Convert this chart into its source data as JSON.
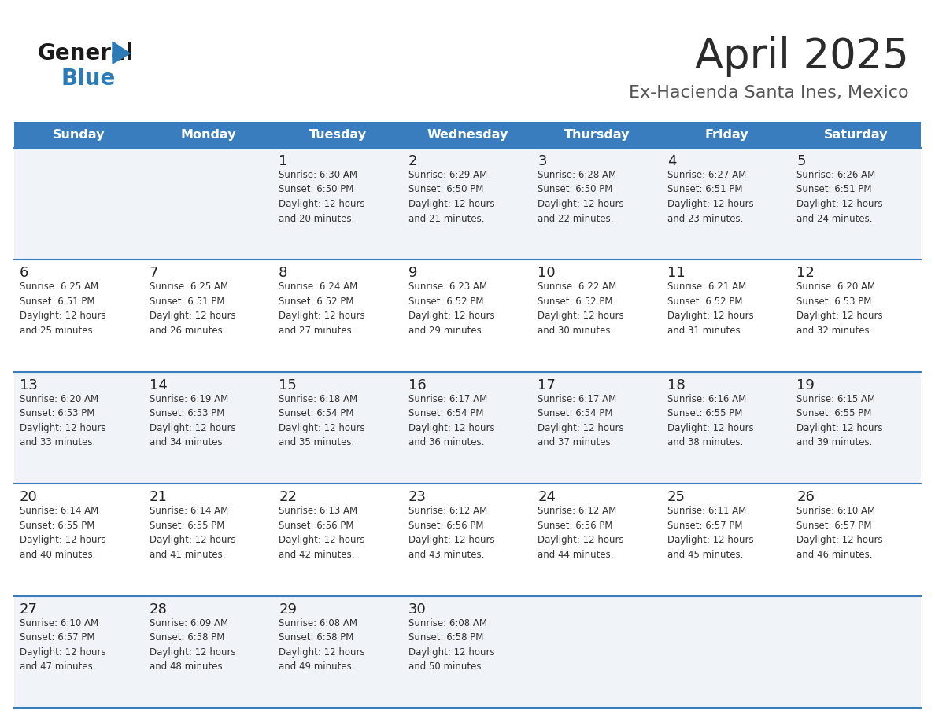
{
  "title": "April 2025",
  "subtitle": "Ex-Hacienda Santa Ines, Mexico",
  "header_bg_color": "#3A7DBF",
  "header_text_color": "#FFFFFF",
  "day_names": [
    "Sunday",
    "Monday",
    "Tuesday",
    "Wednesday",
    "Thursday",
    "Friday",
    "Saturday"
  ],
  "row_bg_odd": "#F0F4F8",
  "row_bg_even": "#FFFFFF",
  "cell_border_color": "#3A7DBF",
  "day_number_color": "#222222",
  "cell_text_color": "#333333",
  "title_color": "#2B2B2B",
  "subtitle_color": "#555555",
  "logo_general_color": "#1A1A1A",
  "logo_blue_color": "#2C7BB6",
  "weeks": [
    [
      {
        "day": null,
        "text": null
      },
      {
        "day": null,
        "text": null
      },
      {
        "day": 1,
        "text": "Sunrise: 6:30 AM\nSunset: 6:50 PM\nDaylight: 12 hours\nand 20 minutes."
      },
      {
        "day": 2,
        "text": "Sunrise: 6:29 AM\nSunset: 6:50 PM\nDaylight: 12 hours\nand 21 minutes."
      },
      {
        "day": 3,
        "text": "Sunrise: 6:28 AM\nSunset: 6:50 PM\nDaylight: 12 hours\nand 22 minutes."
      },
      {
        "day": 4,
        "text": "Sunrise: 6:27 AM\nSunset: 6:51 PM\nDaylight: 12 hours\nand 23 minutes."
      },
      {
        "day": 5,
        "text": "Sunrise: 6:26 AM\nSunset: 6:51 PM\nDaylight: 12 hours\nand 24 minutes."
      }
    ],
    [
      {
        "day": 6,
        "text": "Sunrise: 6:25 AM\nSunset: 6:51 PM\nDaylight: 12 hours\nand 25 minutes."
      },
      {
        "day": 7,
        "text": "Sunrise: 6:25 AM\nSunset: 6:51 PM\nDaylight: 12 hours\nand 26 minutes."
      },
      {
        "day": 8,
        "text": "Sunrise: 6:24 AM\nSunset: 6:52 PM\nDaylight: 12 hours\nand 27 minutes."
      },
      {
        "day": 9,
        "text": "Sunrise: 6:23 AM\nSunset: 6:52 PM\nDaylight: 12 hours\nand 29 minutes."
      },
      {
        "day": 10,
        "text": "Sunrise: 6:22 AM\nSunset: 6:52 PM\nDaylight: 12 hours\nand 30 minutes."
      },
      {
        "day": 11,
        "text": "Sunrise: 6:21 AM\nSunset: 6:52 PM\nDaylight: 12 hours\nand 31 minutes."
      },
      {
        "day": 12,
        "text": "Sunrise: 6:20 AM\nSunset: 6:53 PM\nDaylight: 12 hours\nand 32 minutes."
      }
    ],
    [
      {
        "day": 13,
        "text": "Sunrise: 6:20 AM\nSunset: 6:53 PM\nDaylight: 12 hours\nand 33 minutes."
      },
      {
        "day": 14,
        "text": "Sunrise: 6:19 AM\nSunset: 6:53 PM\nDaylight: 12 hours\nand 34 minutes."
      },
      {
        "day": 15,
        "text": "Sunrise: 6:18 AM\nSunset: 6:54 PM\nDaylight: 12 hours\nand 35 minutes."
      },
      {
        "day": 16,
        "text": "Sunrise: 6:17 AM\nSunset: 6:54 PM\nDaylight: 12 hours\nand 36 minutes."
      },
      {
        "day": 17,
        "text": "Sunrise: 6:17 AM\nSunset: 6:54 PM\nDaylight: 12 hours\nand 37 minutes."
      },
      {
        "day": 18,
        "text": "Sunrise: 6:16 AM\nSunset: 6:55 PM\nDaylight: 12 hours\nand 38 minutes."
      },
      {
        "day": 19,
        "text": "Sunrise: 6:15 AM\nSunset: 6:55 PM\nDaylight: 12 hours\nand 39 minutes."
      }
    ],
    [
      {
        "day": 20,
        "text": "Sunrise: 6:14 AM\nSunset: 6:55 PM\nDaylight: 12 hours\nand 40 minutes."
      },
      {
        "day": 21,
        "text": "Sunrise: 6:14 AM\nSunset: 6:55 PM\nDaylight: 12 hours\nand 41 minutes."
      },
      {
        "day": 22,
        "text": "Sunrise: 6:13 AM\nSunset: 6:56 PM\nDaylight: 12 hours\nand 42 minutes."
      },
      {
        "day": 23,
        "text": "Sunrise: 6:12 AM\nSunset: 6:56 PM\nDaylight: 12 hours\nand 43 minutes."
      },
      {
        "day": 24,
        "text": "Sunrise: 6:12 AM\nSunset: 6:56 PM\nDaylight: 12 hours\nand 44 minutes."
      },
      {
        "day": 25,
        "text": "Sunrise: 6:11 AM\nSunset: 6:57 PM\nDaylight: 12 hours\nand 45 minutes."
      },
      {
        "day": 26,
        "text": "Sunrise: 6:10 AM\nSunset: 6:57 PM\nDaylight: 12 hours\nand 46 minutes."
      }
    ],
    [
      {
        "day": 27,
        "text": "Sunrise: 6:10 AM\nSunset: 6:57 PM\nDaylight: 12 hours\nand 47 minutes."
      },
      {
        "day": 28,
        "text": "Sunrise: 6:09 AM\nSunset: 6:58 PM\nDaylight: 12 hours\nand 48 minutes."
      },
      {
        "day": 29,
        "text": "Sunrise: 6:08 AM\nSunset: 6:58 PM\nDaylight: 12 hours\nand 49 minutes."
      },
      {
        "day": 30,
        "text": "Sunrise: 6:08 AM\nSunset: 6:58 PM\nDaylight: 12 hours\nand 50 minutes."
      },
      {
        "day": null,
        "text": null
      },
      {
        "day": null,
        "text": null
      },
      {
        "day": null,
        "text": null
      }
    ]
  ]
}
